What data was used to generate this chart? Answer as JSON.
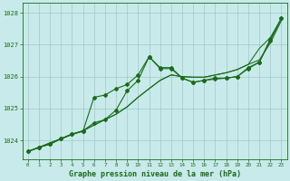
{
  "title": "Graphe pression niveau de la mer (hPa)",
  "hours": [
    0,
    1,
    2,
    3,
    4,
    5,
    6,
    7,
    8,
    9,
    10,
    11,
    12,
    13,
    14,
    15,
    16,
    17,
    18,
    19,
    20,
    21,
    22,
    23
  ],
  "ylim": [
    1023.4,
    1028.3
  ],
  "yticks": [
    1024,
    1025,
    1026,
    1027,
    1028
  ],
  "xlim": [
    -0.5,
    23.5
  ],
  "background_color": "#c8eaea",
  "grid_color": "#a0c8c8",
  "line_color": "#1a6b1a",
  "series_jagged1": [
    1023.65,
    1023.78,
    1023.88,
    1024.05,
    1024.2,
    1024.28,
    1025.35,
    1025.42,
    1025.62,
    1025.75,
    1026.05,
    1026.62,
    1026.25,
    1026.25,
    1025.95,
    1025.82,
    1025.88,
    1025.92,
    1025.95,
    1026.0,
    1026.25,
    1026.45,
    1027.12,
    1027.82
  ],
  "series_jagged2": [
    1023.65,
    1023.78,
    1023.88,
    1024.05,
    1024.2,
    1024.3,
    1024.55,
    1024.65,
    1024.95,
    1025.55,
    1025.88,
    1026.62,
    1026.28,
    1026.28,
    1025.95,
    1025.82,
    1025.88,
    1025.95,
    1025.95,
    1026.0,
    1026.28,
    1026.45,
    1027.18,
    1027.82
  ],
  "series_smooth1": [
    1023.65,
    1023.78,
    1023.92,
    1024.05,
    1024.18,
    1024.3,
    1024.48,
    1024.65,
    1024.82,
    1025.05,
    1025.35,
    1025.62,
    1025.88,
    1026.05,
    1026.0,
    1025.98,
    1025.98,
    1026.05,
    1026.12,
    1026.22,
    1026.38,
    1026.52,
    1027.05,
    1027.75
  ],
  "series_smooth2": [
    1023.65,
    1023.78,
    1023.92,
    1024.05,
    1024.18,
    1024.3,
    1024.48,
    1024.65,
    1024.82,
    1025.05,
    1025.35,
    1025.62,
    1025.88,
    1026.05,
    1026.0,
    1025.98,
    1025.98,
    1026.05,
    1026.12,
    1026.22,
    1026.38,
    1026.88,
    1027.22,
    1027.82
  ]
}
